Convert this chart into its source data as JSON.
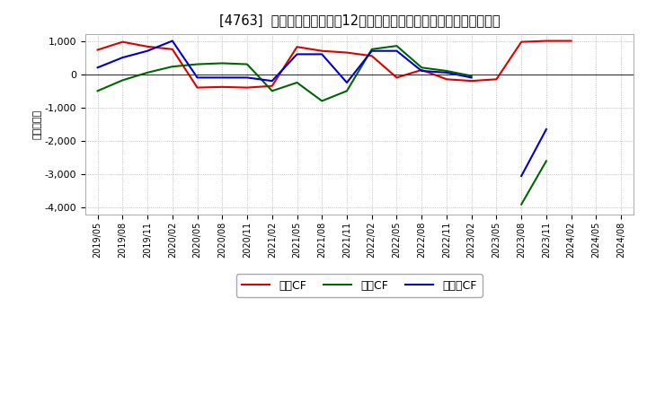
{
  "title": "[4763]  キャッシュフローの12か月移動合計の対前年同期増減額の推移",
  "ylabel": "（百万円）",
  "x_labels": [
    "2019/05",
    "2019/08",
    "2019/11",
    "2020/02",
    "2020/05",
    "2020/08",
    "2020/11",
    "2021/02",
    "2021/05",
    "2021/08",
    "2021/11",
    "2022/02",
    "2022/05",
    "2022/08",
    "2022/11",
    "2023/02",
    "2023/05",
    "2023/08",
    "2023/11",
    "2024/02",
    "2024/05",
    "2024/08"
  ],
  "series": [
    {
      "label": "営業CF",
      "color": "#dd0000",
      "values": [
        730,
        970,
        830,
        750,
        -400,
        -380,
        -400,
        -350,
        820,
        700,
        650,
        550,
        -100,
        130,
        -150,
        -200,
        -150,
        970,
        1000,
        1000,
        null,
        null
      ]
    },
    {
      "label": "投資CF",
      "color": "#006600",
      "values": [
        -500,
        -180,
        50,
        230,
        300,
        330,
        300,
        -500,
        -250,
        -800,
        -500,
        750,
        850,
        200,
        100,
        -50,
        null,
        -3900,
        -2600,
        null,
        null,
        null
      ]
    },
    {
      "label": "フリーCF",
      "color": "#0000cc",
      "values": [
        200,
        500,
        700,
        1000,
        -100,
        -100,
        -100,
        -200,
        600,
        600,
        -250,
        700,
        700,
        100,
        50,
        -100,
        null,
        -3050,
        -1650,
        null,
        null,
        null
      ]
    }
  ],
  "ylim": [
    -4200,
    1200
  ],
  "yticks": [
    -4000,
    -3000,
    -2000,
    -1000,
    0,
    1000
  ],
  "background_color": "#ffffff",
  "title_fontsize": 10.5,
  "legend_fontsize": 9
}
